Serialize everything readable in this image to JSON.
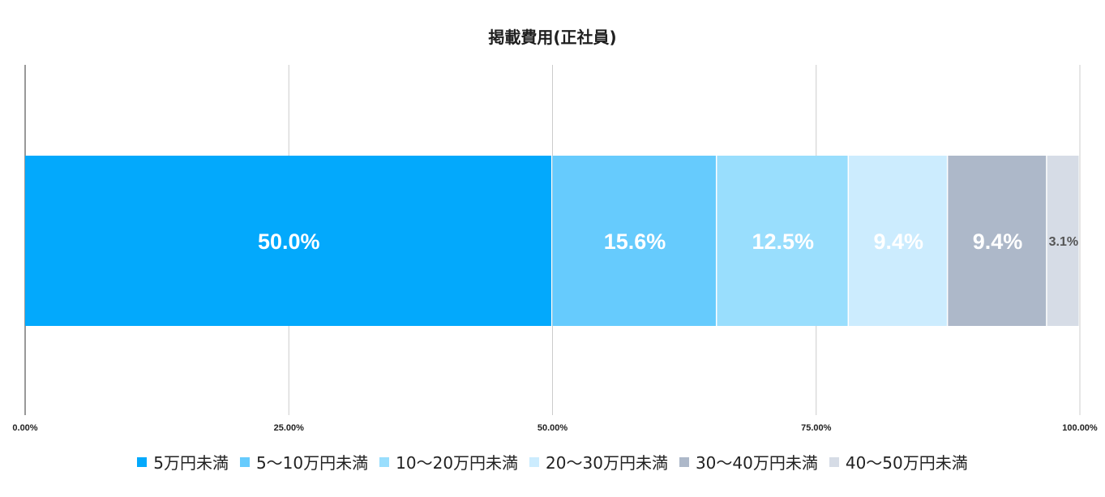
{
  "chart_data": {
    "type": "bar",
    "orientation": "horizontal",
    "stacked": true,
    "title": "掲載費用(正社員)",
    "categories": [
      ""
    ],
    "series": [
      {
        "name": "5万円未満",
        "values": [
          50.0
        ],
        "label": "50.0%",
        "color": "#03a9fc"
      },
      {
        "name": "5〜10万円未満",
        "values": [
          15.6
        ],
        "label": "15.6%",
        "color": "#66cbfd"
      },
      {
        "name": "10〜20万円未満",
        "values": [
          12.5
        ],
        "label": "12.5%",
        "color": "#99defd"
      },
      {
        "name": "20〜30万円未満",
        "values": [
          9.4
        ],
        "label": "9.4%",
        "color": "#ccecfe"
      },
      {
        "name": "30〜40万円未満",
        "values": [
          9.4
        ],
        "label": "9.4%",
        "color": "#adb8c9"
      },
      {
        "name": "40〜50万円未満",
        "values": [
          3.1
        ],
        "label": "3.1%",
        "color": "#d6dce6"
      }
    ],
    "xlim": [
      0,
      100
    ],
    "xticks": [
      "0.00%",
      "25.00%",
      "50.00%",
      "75.00%",
      "100.00%"
    ],
    "xtick_values": [
      0,
      25,
      50,
      75,
      100
    ],
    "grid": true,
    "legend_position": "bottom"
  }
}
